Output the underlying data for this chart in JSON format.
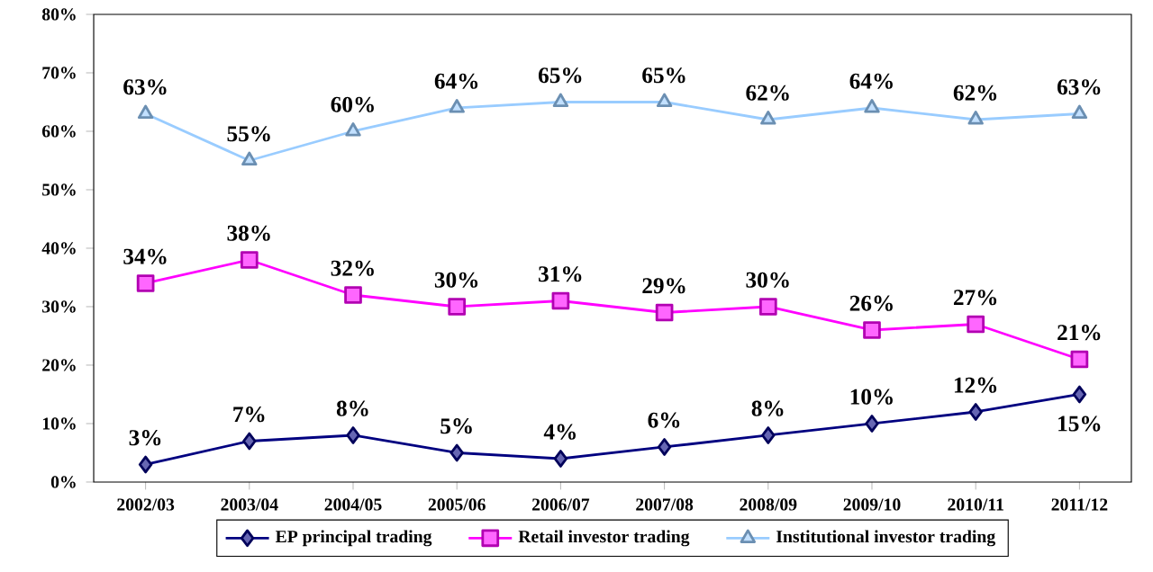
{
  "chart_data": {
    "type": "line",
    "categories": [
      "2002/03",
      "2003/04",
      "2004/05",
      "2005/06",
      "2006/07",
      "2007/08",
      "2008/09",
      "2009/10",
      "2010/11",
      "2011/12"
    ],
    "series": [
      {
        "name": "EP principal trading",
        "color": "#000080",
        "marker": "diamond",
        "values": [
          3,
          7,
          8,
          5,
          4,
          6,
          8,
          10,
          12,
          15
        ],
        "value_labels": [
          "3%",
          "7%",
          "8%",
          "5%",
          "4%",
          "6%",
          "8%",
          "10%",
          "12%",
          "15%"
        ]
      },
      {
        "name": "Retail investor trading",
        "color": "#ff00ff",
        "marker": "square",
        "values": [
          34,
          38,
          32,
          30,
          31,
          29,
          30,
          26,
          27,
          21
        ],
        "value_labels": [
          "34%",
          "38%",
          "32%",
          "30%",
          "31%",
          "29%",
          "30%",
          "26%",
          "27%",
          "21%"
        ]
      },
      {
        "name": "Institutional investor trading",
        "color": "#99ccff",
        "marker": "triangle",
        "values": [
          63,
          55,
          60,
          64,
          65,
          65,
          62,
          64,
          62,
          63
        ],
        "value_labels": [
          "63%",
          "55%",
          "60%",
          "64%",
          "65%",
          "65%",
          "62%",
          "64%",
          "62%",
          "63%"
        ]
      }
    ],
    "ylim": [
      0,
      80
    ],
    "yticks": [
      {
        "value": 0,
        "label": "0%"
      },
      {
        "value": 10,
        "label": "10%"
      },
      {
        "value": 20,
        "label": "20%"
      },
      {
        "value": 30,
        "label": "30%"
      },
      {
        "value": 40,
        "label": "40%"
      },
      {
        "value": 50,
        "label": "50%"
      },
      {
        "value": 60,
        "label": "60%"
      },
      {
        "value": 70,
        "label": "70%"
      },
      {
        "value": 80,
        "label": "80%"
      }
    ],
    "grid": false,
    "legend": "bottom",
    "line_style": "solid"
  }
}
